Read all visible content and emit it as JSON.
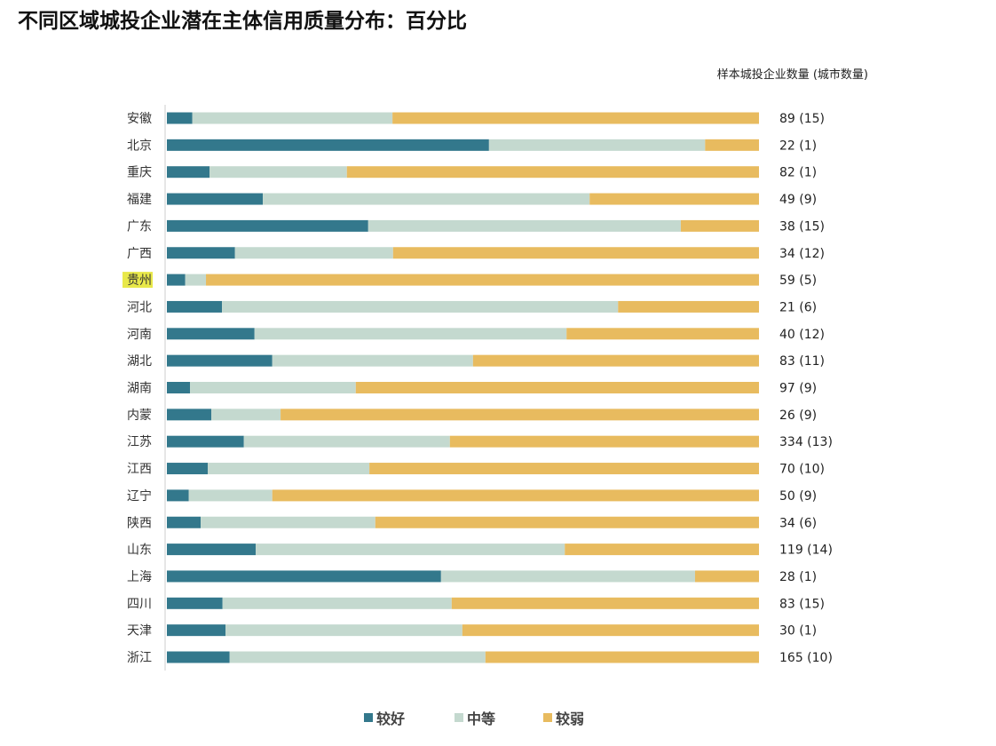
{
  "chart_data": {
    "type": "bar",
    "orientation": "horizontal",
    "stacked": true,
    "title": "不同区域城投企业潜在主体信用质量分布：百分比",
    "count_header": "样本城投企业数量 (城市数量)",
    "categories": [
      "安徽",
      "北京",
      "重庆",
      "福建",
      "广东",
      "广西",
      "贵州",
      "河北",
      "河南",
      "湖北",
      "湖南",
      "内蒙",
      "江苏",
      "江西",
      "辽宁",
      "陕西",
      "山东",
      "上海",
      "四川",
      "天津",
      "浙江"
    ],
    "highlighted_category": "贵州",
    "highlight_color": "#e8e84a",
    "counts": [
      "89 (15)",
      "22 (1)",
      "82 (1)",
      "49 (9)",
      "38 (15)",
      "34 (12)",
      "59 (5)",
      "21 (6)",
      "40 (12)",
      "83 (11)",
      "97 (9)",
      "26 (9)",
      "334 (13)",
      "70 (10)",
      "50 (9)",
      "34 (6)",
      "119 (14)",
      "28 (1)",
      "83 (15)",
      "30 (1)",
      "165 (10)"
    ],
    "series": [
      {
        "name": "较好",
        "color": "#33788c",
        "values": [
          4.3,
          54.4,
          7.2,
          16.2,
          34.0,
          11.5,
          3.1,
          9.3,
          14.8,
          17.8,
          3.9,
          7.5,
          13.0,
          6.9,
          3.7,
          5.7,
          15.0,
          46.3,
          9.4,
          9.9,
          10.6
        ]
      },
      {
        "name": "中等",
        "color": "#c4d9cf",
        "values": [
          33.8,
          36.5,
          23.2,
          55.2,
          52.8,
          26.7,
          3.5,
          66.9,
          52.7,
          33.9,
          28.0,
          11.7,
          34.8,
          27.3,
          14.1,
          29.5,
          52.2,
          42.9,
          38.7,
          40.0,
          43.2
        ]
      },
      {
        "name": "较弱",
        "color": "#e8bb5f",
        "values": [
          61.9,
          9.1,
          69.6,
          28.6,
          13.2,
          61.8,
          93.4,
          23.8,
          32.5,
          48.3,
          68.1,
          80.8,
          52.2,
          65.8,
          82.2,
          64.8,
          32.8,
          10.8,
          51.9,
          50.1,
          46.2
        ]
      }
    ],
    "xlim": [
      0,
      100
    ],
    "unit": "%",
    "grid": false,
    "legend_position": "bottom"
  }
}
